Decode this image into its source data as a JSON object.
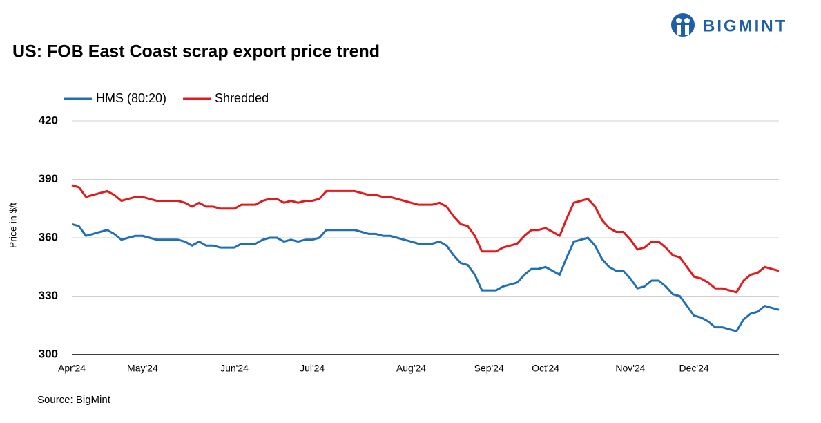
{
  "chart_data": {
    "type": "line",
    "title": "US: FOB East Coast scrap export price trend",
    "logo": "BIGMINT",
    "source": "Source: BigMint",
    "y_label": "Price in $/t",
    "ylim": [
      300,
      420
    ],
    "yticks": [
      300,
      330,
      360,
      390,
      420
    ],
    "grid": true,
    "legend": "top-left",
    "categories": [
      "Apr'24",
      null,
      null,
      null,
      null,
      null,
      null,
      null,
      null,
      null,
      "May'24",
      null,
      null,
      null,
      null,
      null,
      null,
      null,
      null,
      null,
      null,
      null,
      null,
      "Jun'24",
      null,
      null,
      null,
      null,
      null,
      null,
      null,
      null,
      null,
      null,
      "Jul'24",
      null,
      null,
      null,
      null,
      null,
      null,
      null,
      null,
      null,
      null,
      null,
      null,
      null,
      "Aug'24",
      null,
      null,
      null,
      null,
      null,
      null,
      null,
      null,
      null,
      null,
      "Sep'24",
      null,
      null,
      null,
      null,
      null,
      null,
      null,
      "Oct'24",
      null,
      null,
      null,
      null,
      null,
      null,
      null,
      null,
      null,
      null,
      null,
      "Nov'24",
      null,
      null,
      null,
      null,
      null,
      null,
      null,
      null,
      "Dec'24",
      null,
      null,
      null,
      null,
      null,
      null,
      null,
      null,
      null,
      null,
      null,
      null
    ],
    "series": [
      {
        "name": "HMS (80:20)",
        "color": "#1f6fb2",
        "values": [
          367,
          366,
          361,
          362,
          363,
          364,
          362,
          359,
          360,
          361,
          361,
          360,
          359,
          359,
          359,
          359,
          358,
          356,
          358,
          356,
          356,
          355,
          355,
          355,
          357,
          357,
          357,
          359,
          360,
          360,
          358,
          359,
          358,
          359,
          359,
          360,
          364,
          364,
          364,
          364,
          364,
          363,
          362,
          362,
          361,
          361,
          360,
          359,
          358,
          357,
          357,
          357,
          358,
          356,
          351,
          347,
          346,
          341,
          333,
          333,
          333,
          335,
          336,
          337,
          341,
          344,
          344,
          345,
          343,
          341,
          350,
          358,
          359,
          360,
          356,
          349,
          345,
          343,
          343,
          339,
          334,
          335,
          338,
          338,
          335,
          331,
          330,
          325,
          320,
          319,
          317,
          314,
          314,
          313,
          312,
          318,
          321,
          322,
          325,
          324,
          323
        ]
      },
      {
        "name": "Shredded",
        "color": "#e31a1c",
        "values": [
          387,
          386,
          381,
          382,
          383,
          384,
          382,
          379,
          380,
          381,
          381,
          380,
          379,
          379,
          379,
          379,
          378,
          376,
          378,
          376,
          376,
          375,
          375,
          375,
          377,
          377,
          377,
          379,
          380,
          380,
          378,
          379,
          378,
          379,
          379,
          380,
          384,
          384,
          384,
          384,
          384,
          383,
          382,
          382,
          381,
          381,
          380,
          379,
          378,
          377,
          377,
          377,
          378,
          376,
          371,
          367,
          366,
          361,
          353,
          353,
          353,
          355,
          356,
          357,
          361,
          364,
          364,
          365,
          363,
          361,
          370,
          378,
          379,
          380,
          376,
          369,
          365,
          363,
          363,
          359,
          354,
          355,
          358,
          358,
          355,
          351,
          350,
          345,
          340,
          339,
          337,
          334,
          334,
          333,
          332,
          338,
          341,
          342,
          345,
          344,
          343
        ]
      }
    ]
  }
}
